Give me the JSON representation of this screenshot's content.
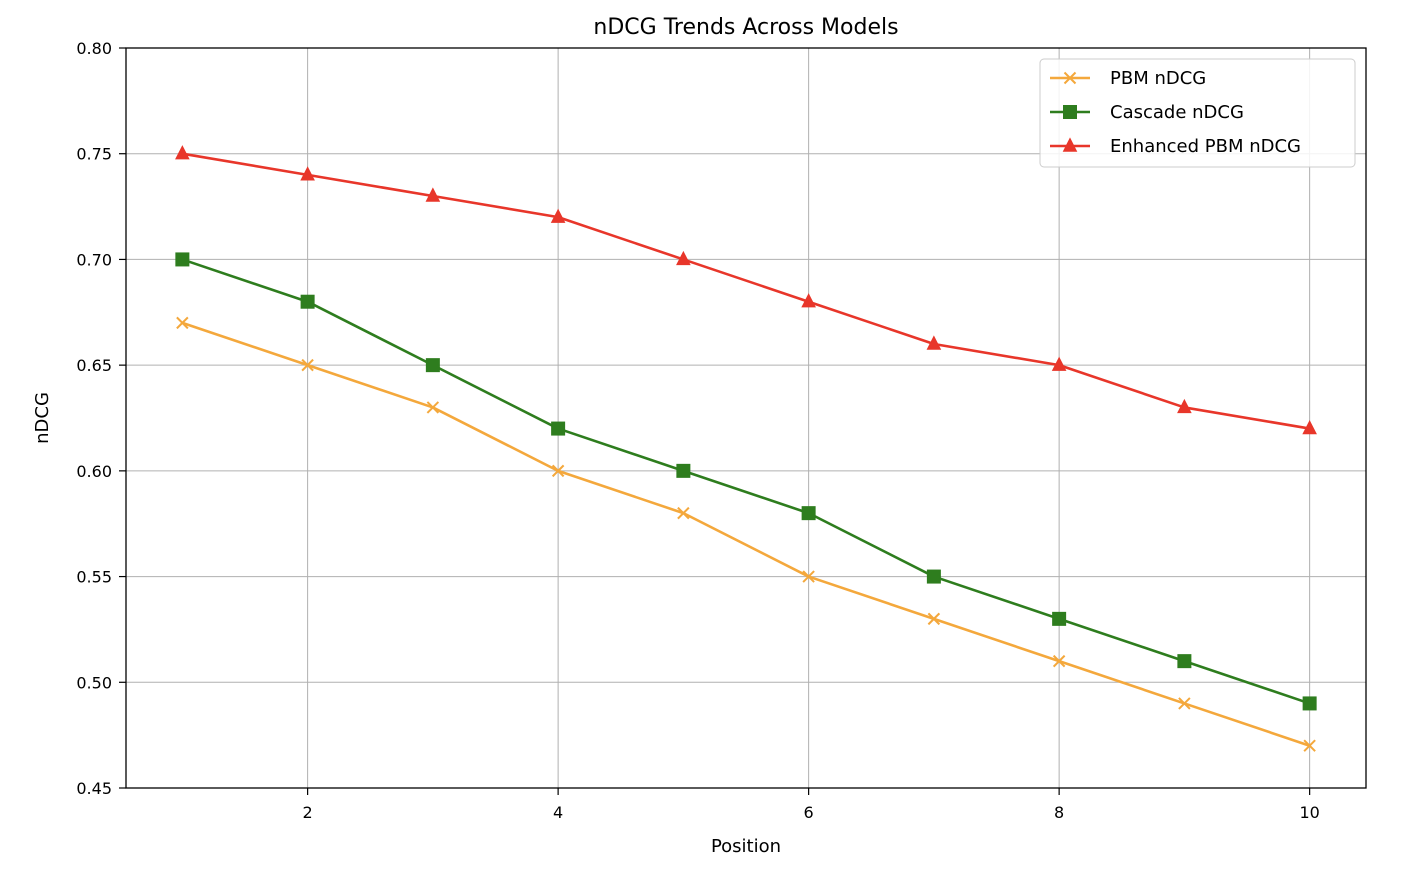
{
  "chart_data": {
    "type": "line",
    "title": "nDCG Trends Across Models",
    "xlabel": "Position",
    "ylabel": "nDCG",
    "x": [
      1,
      2,
      3,
      4,
      5,
      6,
      7,
      8,
      9,
      10
    ],
    "xlim": [
      0.55,
      10.45
    ],
    "ylim": [
      0.45,
      0.8
    ],
    "xticks": [
      2,
      4,
      6,
      8,
      10
    ],
    "xtick_labels": [
      "2",
      "4",
      "6",
      "8",
      "10"
    ],
    "yticks": [
      0.45,
      0.5,
      0.55,
      0.6,
      0.65,
      0.7,
      0.75,
      0.8
    ],
    "ytick_labels": [
      "0.45",
      "0.50",
      "0.55",
      "0.60",
      "0.65",
      "0.70",
      "0.75",
      "0.80"
    ],
    "grid": true,
    "legend_position": "top-right",
    "series": [
      {
        "name": "PBM nDCG",
        "color": "#f4a83c",
        "marker": "x",
        "values": [
          0.67,
          0.65,
          0.63,
          0.6,
          0.58,
          0.55,
          0.53,
          0.51,
          0.49,
          0.47
        ]
      },
      {
        "name": "Cascade nDCG",
        "color": "#2e7d1e",
        "marker": "square",
        "values": [
          0.7,
          0.68,
          0.65,
          0.62,
          0.6,
          0.58,
          0.55,
          0.53,
          0.51,
          0.49
        ]
      },
      {
        "name": "Enhanced PBM nDCG",
        "color": "#e8362a",
        "marker": "triangle",
        "values": [
          0.75,
          0.74,
          0.73,
          0.72,
          0.7,
          0.68,
          0.66,
          0.65,
          0.63,
          0.62
        ]
      }
    ]
  }
}
